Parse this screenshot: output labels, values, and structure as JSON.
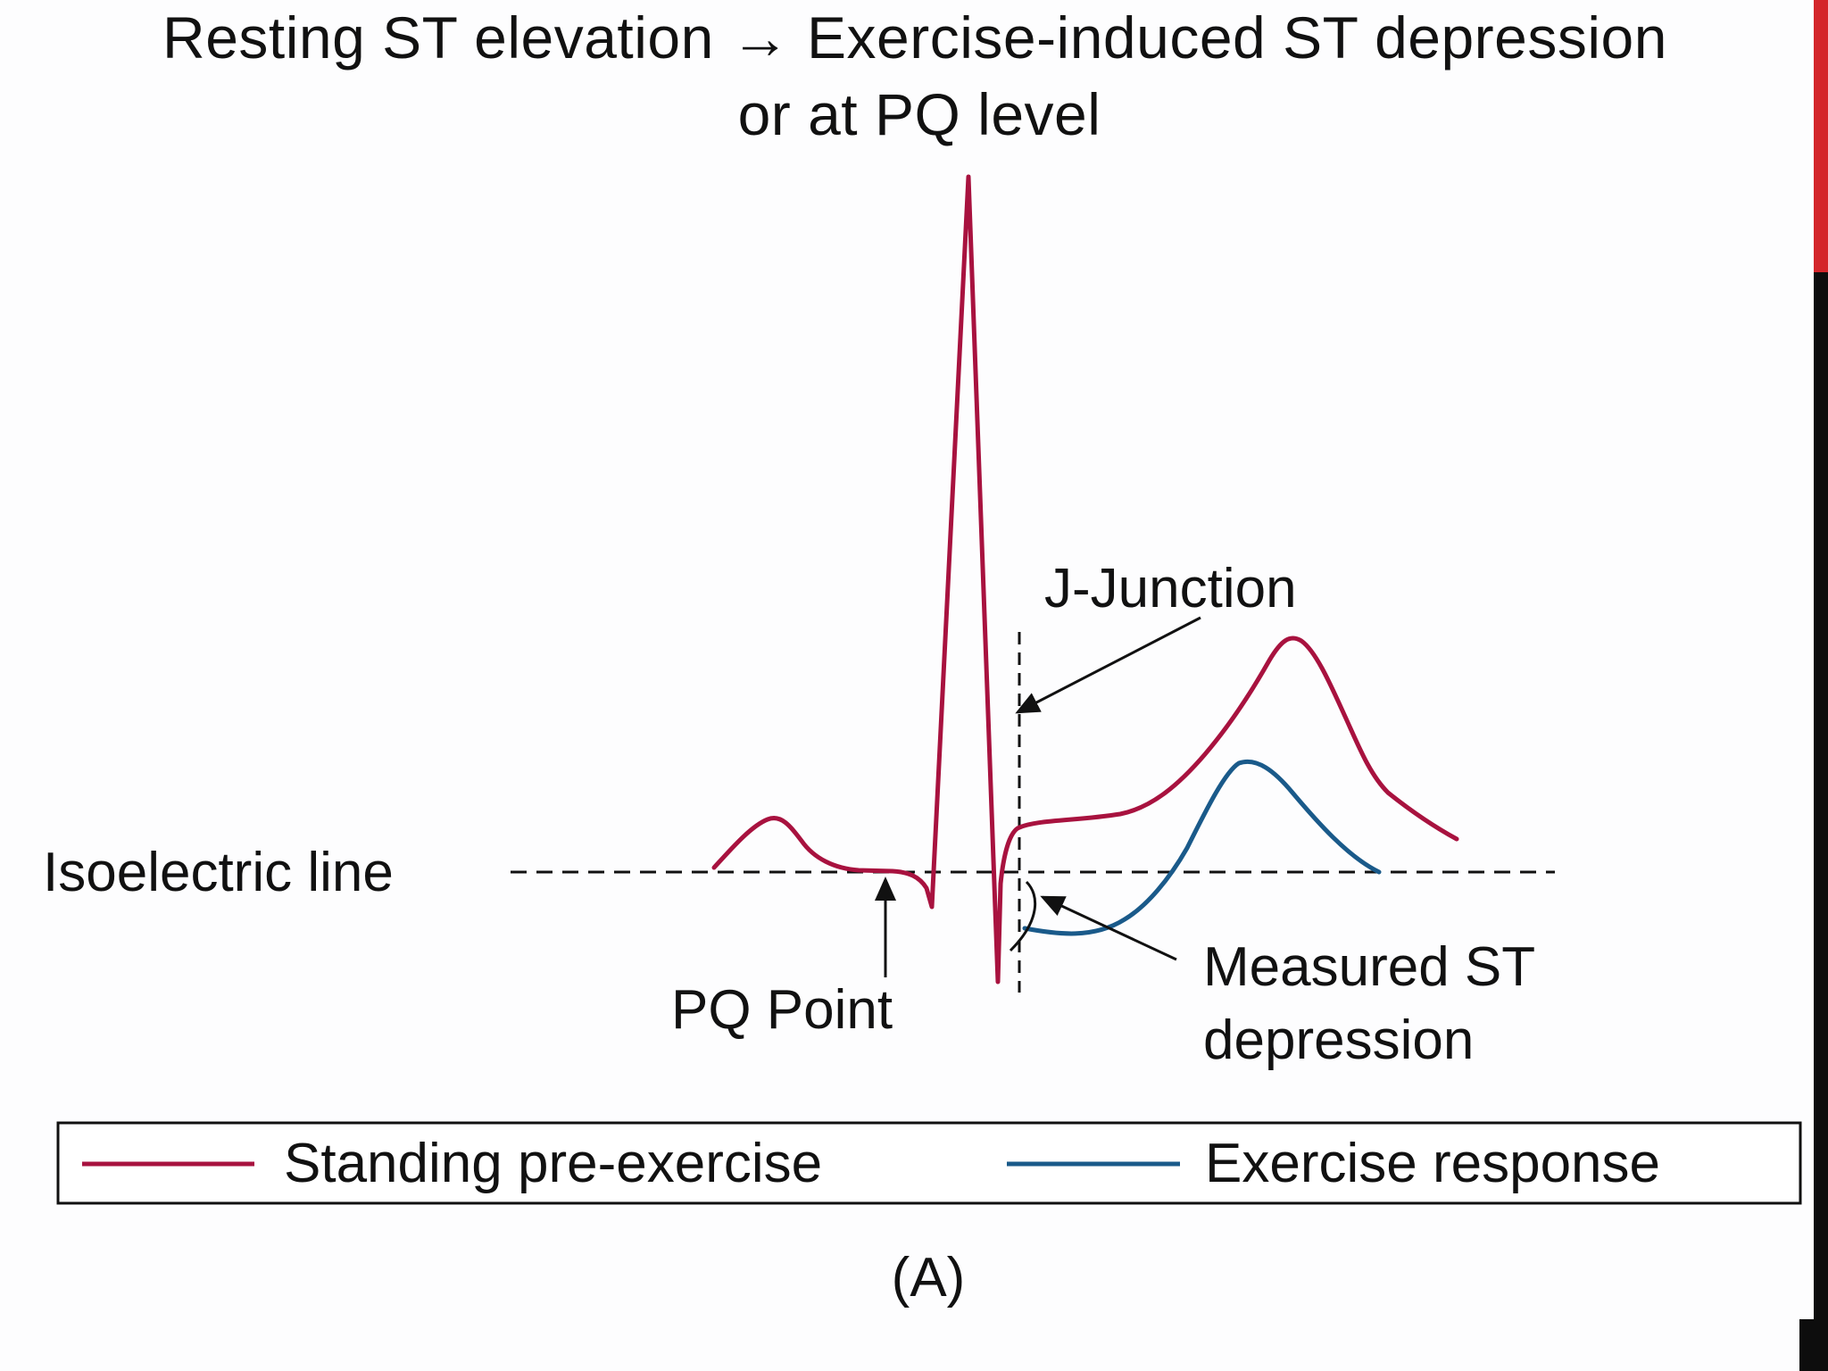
{
  "title": {
    "line1": "Resting ST elevation → Exercise-induced ST depression",
    "line2": "or at PQ level"
  },
  "labels": {
    "isoelectric_line": "Isoelectric line",
    "j_junction": "J-Junction",
    "pq_point": "PQ Point",
    "measured_st_line1": "Measured ST",
    "measured_st_line2": "depression"
  },
  "legend": {
    "series": [
      {
        "name": "Standing pre-exercise",
        "color": "#a8123f"
      },
      {
        "name": "Exercise response",
        "color": "#1a5a8a"
      }
    ]
  },
  "panel_label": "(A)",
  "colors": {
    "standing": "#a8123f",
    "exercise": "#1a5a8a",
    "annotation": "#111111",
    "accent_bar": "#d4262b"
  }
}
